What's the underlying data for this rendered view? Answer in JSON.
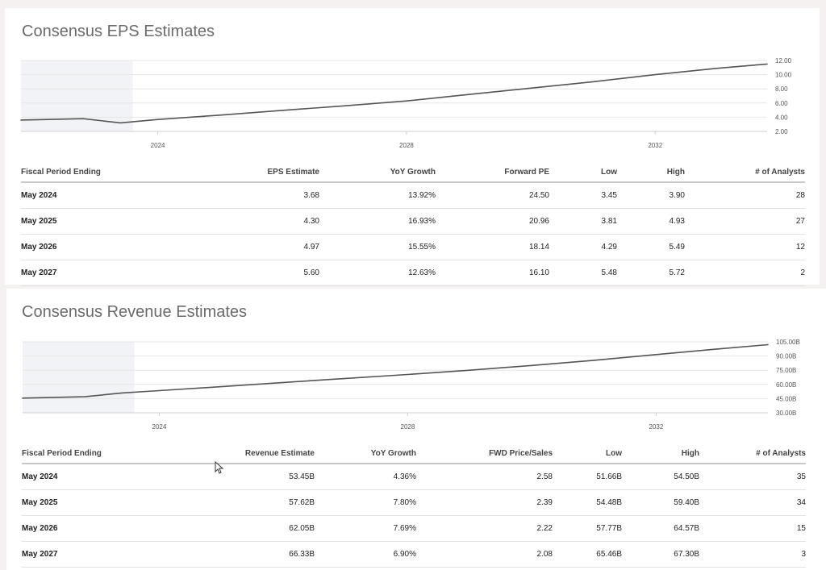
{
  "eps": {
    "title": "Consensus EPS Estimates",
    "columns": [
      "Fiscal Period Ending",
      "EPS Estimate",
      "YoY Growth",
      "Forward PE",
      "Low",
      "High",
      "# of Analysts"
    ],
    "rows": [
      [
        "May 2024",
        "3.68",
        "13.92%",
        "24.50",
        "3.45",
        "3.90",
        "28"
      ],
      [
        "May 2025",
        "4.30",
        "16.93%",
        "20.96",
        "3.81",
        "4.93",
        "27"
      ],
      [
        "May 2026",
        "4.97",
        "15.55%",
        "18.14",
        "4.29",
        "5.49",
        "12"
      ],
      [
        "May 2027",
        "5.60",
        "12.63%",
        "16.10",
        "5.48",
        "5.72",
        "2"
      ]
    ]
  },
  "revenue": {
    "title": "Consensus Revenue Estimates",
    "columns": [
      "Fiscal Period Ending",
      "Revenue Estimate",
      "YoY Growth",
      "FWD Price/Sales",
      "Low",
      "High",
      "# of Analysts"
    ],
    "rows": [
      [
        "May 2024",
        "53.45B",
        "4.36%",
        "2.58",
        "51.66B",
        "54.50B",
        "35"
      ],
      [
        "May 2025",
        "57.62B",
        "7.80%",
        "2.39",
        "54.48B",
        "59.40B",
        "34"
      ],
      [
        "May 2026",
        "62.05B",
        "7.69%",
        "2.22",
        "57.77B",
        "64.57B",
        "15"
      ],
      [
        "May 2027",
        "66.33B",
        "6.90%",
        "2.08",
        "65.46B",
        "67.30B",
        "3"
      ]
    ]
  },
  "chart_data": [
    {
      "type": "line",
      "title": "Consensus EPS Estimates",
      "x_tick_labels": [
        "2024",
        "2028",
        "2032"
      ],
      "y_tick_labels": [
        "2.00",
        "4.00",
        "6.00",
        "8.00",
        "10.00",
        "12.00"
      ],
      "ylim": [
        2,
        12
      ],
      "xlim": [
        2021.8,
        2033.8
      ],
      "grid": true,
      "shaded_region_x": [
        2021.8,
        2023.6
      ],
      "x": [
        2021.8,
        2022.8,
        2023.4,
        2024.0,
        2025.0,
        2026.0,
        2027.0,
        2028.0,
        2029.0,
        2030.0,
        2031.0,
        2032.0,
        2033.0,
        2033.8
      ],
      "y": [
        3.6,
        3.8,
        3.2,
        3.68,
        4.3,
        4.97,
        5.6,
        6.3,
        7.2,
        8.1,
        9.0,
        10.0,
        10.9,
        11.5
      ],
      "color": "#555555",
      "shade_color": "#f2f3f6"
    },
    {
      "type": "line",
      "title": "Consensus Revenue Estimates",
      "x_tick_labels": [
        "2024",
        "2028",
        "2032"
      ],
      "y_tick_labels": [
        "30.00B",
        "45.00B",
        "60.00B",
        "75.00B",
        "90.00B",
        "105.00B"
      ],
      "ylim": [
        30,
        105
      ],
      "xlim": [
        2021.8,
        2033.8
      ],
      "grid": true,
      "shaded_region_x": [
        2021.8,
        2023.6
      ],
      "x": [
        2021.8,
        2022.8,
        2023.4,
        2024.0,
        2025.0,
        2026.0,
        2027.0,
        2028.0,
        2029.0,
        2030.0,
        2031.0,
        2032.0,
        2033.0,
        2033.8
      ],
      "y": [
        45.5,
        47.0,
        51.0,
        53.45,
        57.62,
        62.05,
        66.33,
        70.5,
        75.0,
        80.0,
        85.5,
        91.5,
        97.5,
        102.0
      ],
      "color": "#555555",
      "shade_color": "#f2f3f6"
    }
  ]
}
